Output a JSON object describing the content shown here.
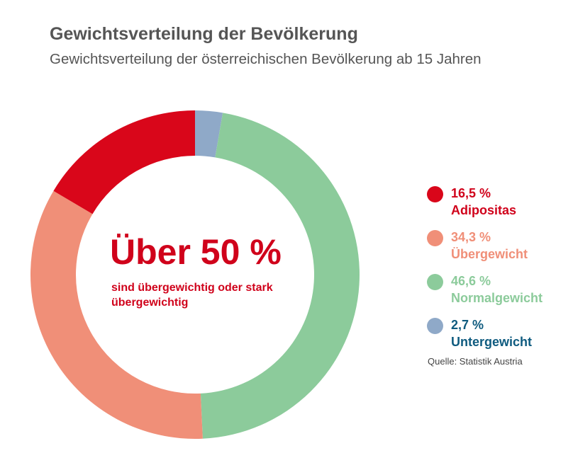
{
  "header": {
    "title": "Gewichtsverteilung der Bevölkerung",
    "subtitle": "Gewichtsverteilung der österreichischen Bevölkerung ab 15 Jahren"
  },
  "center": {
    "headline": "Über 50 %",
    "text": "sind übergewichtig oder stark übergewichtig"
  },
  "source": "Quelle: Statistik Austria",
  "chart_data": {
    "type": "pie",
    "style": "donut",
    "title": "Gewichtsverteilung der Bevölkerung",
    "subtitle": "Gewichtsverteilung der österreichischen Bevölkerung ab 15 Jahren",
    "slices": [
      {
        "label": "Untergewicht",
        "pct_label": "2,7 %",
        "value": 2.7,
        "color": "#8fa9c8",
        "text_color": "#0f5b7f"
      },
      {
        "label": "Normalgewicht",
        "pct_label": "46,6 %",
        "value": 46.6,
        "color": "#8ccb9b",
        "text_color": "#8ccb9b"
      },
      {
        "label": "Übergewicht",
        "pct_label": "34,3 %",
        "value": 34.3,
        "color": "#f08f78",
        "text_color": "#f08f78"
      },
      {
        "label": "Adipositas",
        "pct_label": "16,5 %",
        "value": 16.5,
        "color": "#d9061a",
        "text_color": "#d0021b"
      }
    ],
    "legend_order": [
      "Adipositas",
      "Übergewicht",
      "Normalgewicht",
      "Untergewicht"
    ],
    "legend_position": "right",
    "start": "top",
    "direction": "clockwise"
  }
}
